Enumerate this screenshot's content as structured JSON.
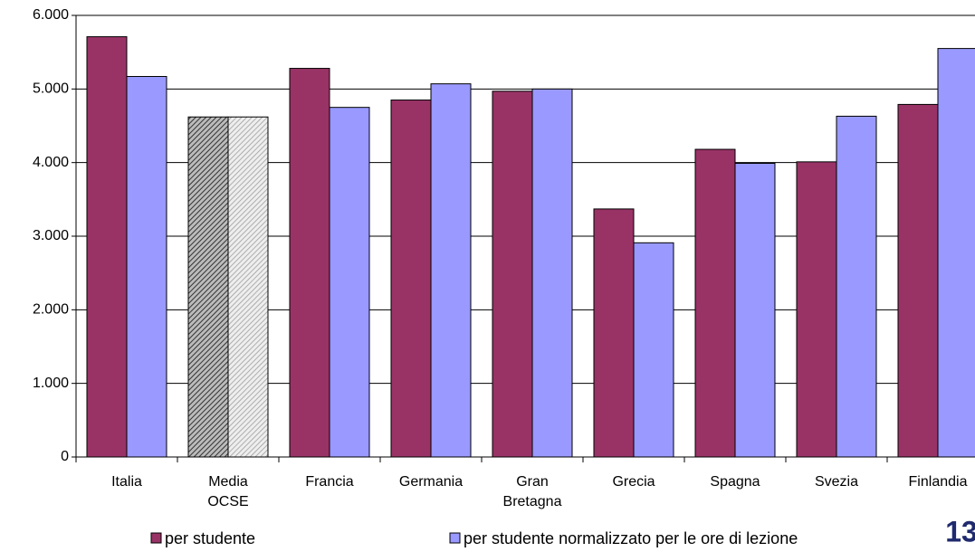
{
  "chart_data": {
    "type": "bar",
    "categories": [
      "Italia",
      "Media OCSE",
      "Francia",
      "Germania",
      "Gran Bretagna",
      "Grecia",
      "Spagna",
      "Svezia",
      "Finlandia"
    ],
    "series": [
      {
        "name": "per studente",
        "color": "#993366",
        "values": [
          5710,
          4620,
          5280,
          4850,
          4970,
          3370,
          4180,
          4010,
          4790
        ]
      },
      {
        "name": "per studente normalizzato per le ore di lezione",
        "color": "#9999ff",
        "values": [
          5170,
          4620,
          4750,
          5070,
          5000,
          2910,
          3990,
          4630,
          5550
        ]
      }
    ],
    "pattern_categories": [
      1
    ],
    "ylim": [
      0,
      6000
    ],
    "yticks": [
      0,
      {
        "value": 1000,
        "label": "1.000"
      },
      {
        "value": 2000,
        "label": "2.000"
      },
      {
        "value": 3000,
        "label": "3.000"
      },
      {
        "value": 4000,
        "label": "4.000"
      },
      {
        "value": 5000,
        "label": "5.000"
      },
      {
        "value": 6000,
        "label": "6.000"
      }
    ],
    "grid": true,
    "legend": "bottom"
  },
  "page_number": "13"
}
